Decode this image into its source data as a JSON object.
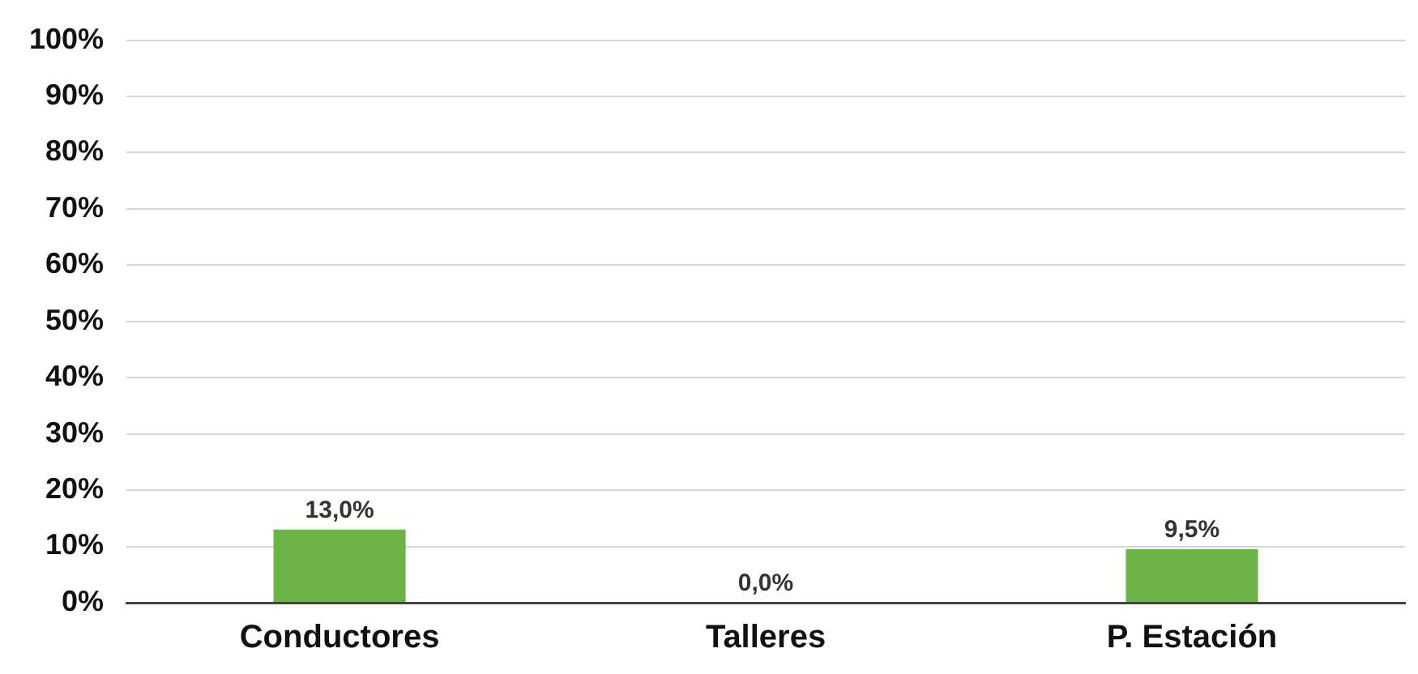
{
  "chart_data": {
    "type": "bar",
    "categories": [
      "Conductores",
      "Talleres",
      "P. Estación"
    ],
    "values": [
      13.0,
      0.0,
      9.5
    ],
    "color": "#6bb345",
    "value_labels": [
      "13,0%",
      "0,0%",
      "9,5%"
    ],
    "ylim": [
      0,
      100
    ],
    "yticks": [
      {
        "value": 0,
        "label": "0%"
      },
      {
        "value": 10,
        "label": "10%"
      },
      {
        "value": 20,
        "label": "20%"
      },
      {
        "value": 30,
        "label": "30%"
      },
      {
        "value": 40,
        "label": "40%"
      },
      {
        "value": 50,
        "label": "50%"
      },
      {
        "value": 60,
        "label": "60%"
      },
      {
        "value": 70,
        "label": "70%"
      },
      {
        "value": 80,
        "label": "80%"
      },
      {
        "value": 90,
        "label": "90%"
      },
      {
        "value": 100,
        "label": "100%"
      }
    ],
    "grid": "y",
    "legend": false
  }
}
